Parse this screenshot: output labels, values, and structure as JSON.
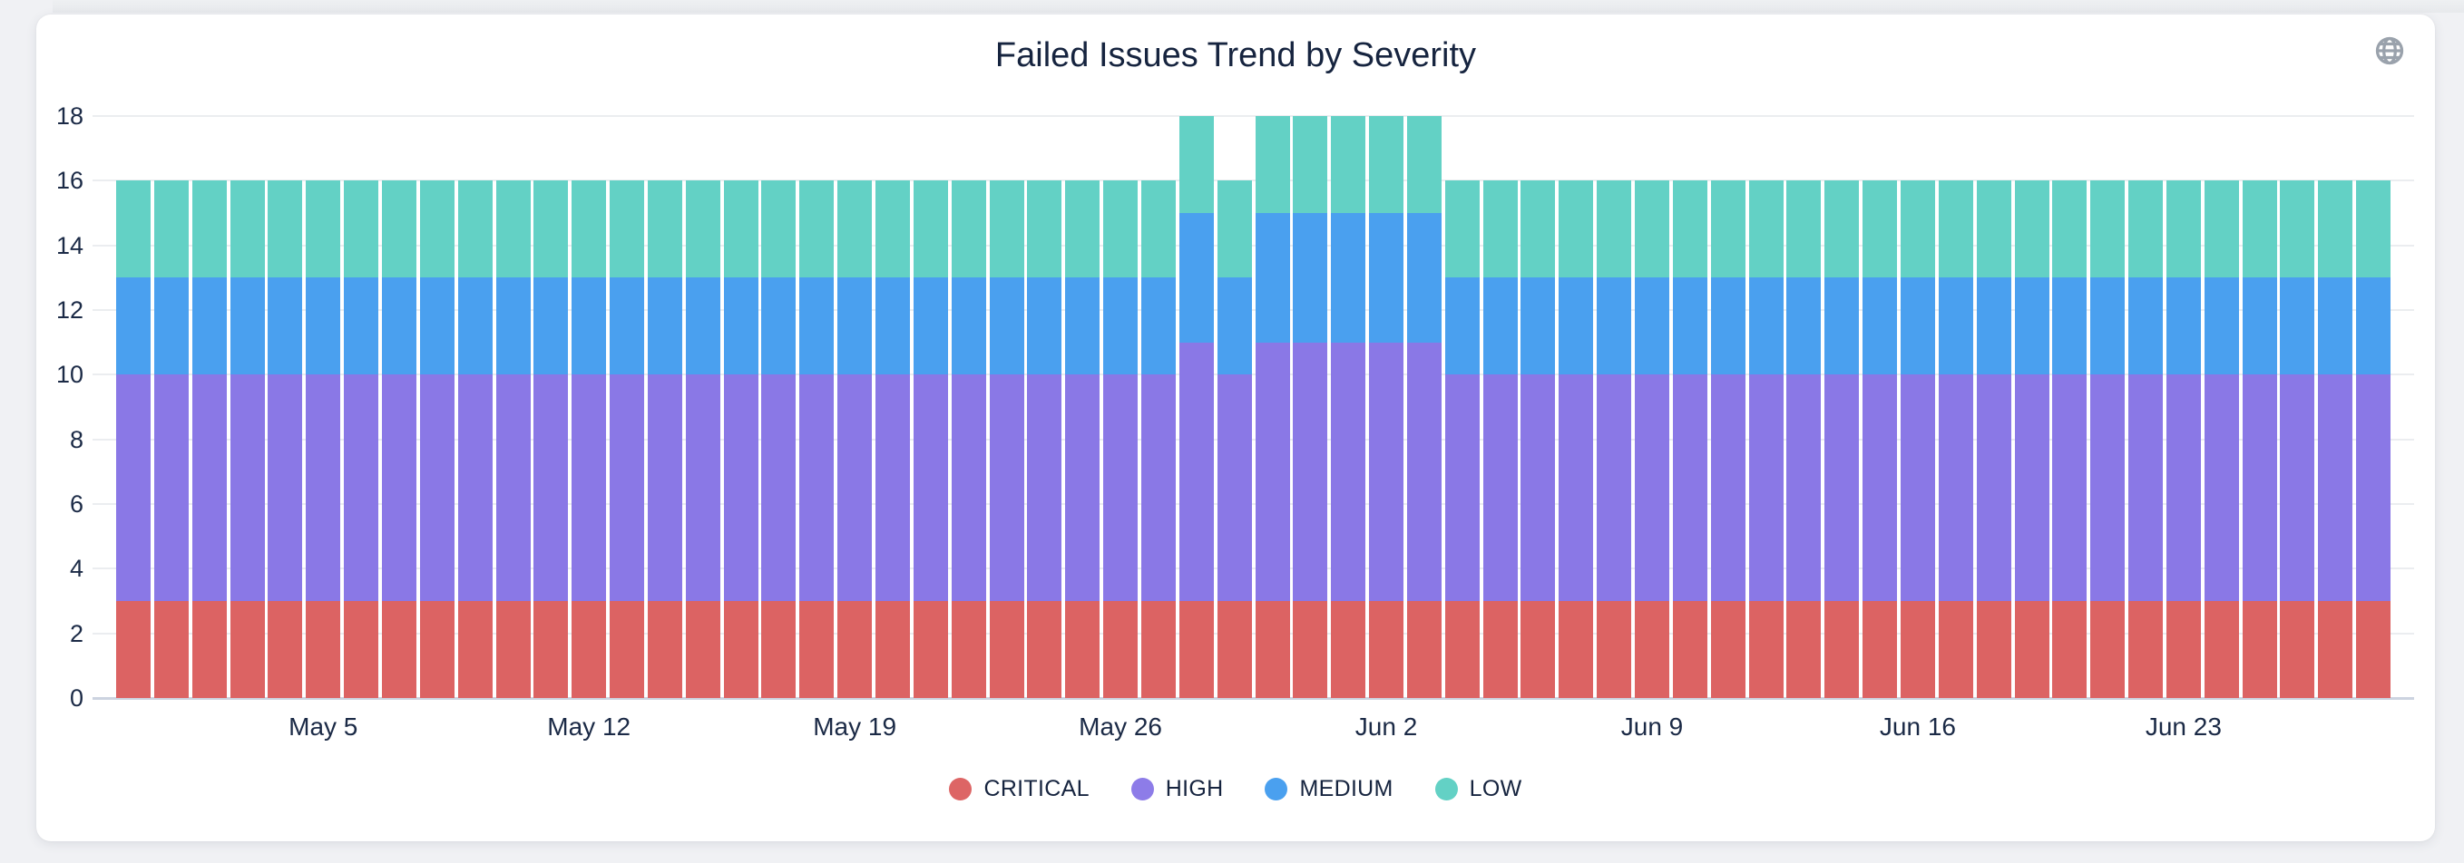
{
  "card": {
    "title": "Failed Issues Trend by Severity",
    "title_color": "#16243f",
    "icon": "globe-icon",
    "icon_color": "#9aa2ac"
  },
  "legend": {
    "items": [
      {
        "label": "CRITICAL",
        "color": "#dd6565"
      },
      {
        "label": "HIGH",
        "color": "#8d7ce8"
      },
      {
        "label": "MEDIUM",
        "color": "#4aa0ef"
      },
      {
        "label": "LOW",
        "color": "#63d1c5"
      }
    ]
  },
  "chart_data": {
    "type": "bar",
    "stacked": true,
    "title": "Failed Issues Trend by Severity",
    "xlabel": "",
    "ylabel": "",
    "ylim": [
      0,
      18
    ],
    "yticks": [
      0,
      2,
      4,
      6,
      8,
      10,
      12,
      14,
      16,
      18
    ],
    "grid": true,
    "legend_position": "bottom",
    "x": [
      "Apr 30",
      "May 1",
      "May 2",
      "May 3",
      "May 4",
      "May 5",
      "May 6",
      "May 7",
      "May 8",
      "May 9",
      "May 10",
      "May 11",
      "May 12",
      "May 13",
      "May 14",
      "May 15",
      "May 16",
      "May 17",
      "May 18",
      "May 19",
      "May 20",
      "May 21",
      "May 22",
      "May 23",
      "May 24",
      "May 25",
      "May 26",
      "May 27",
      "May 28",
      "May 29",
      "May 30",
      "May 31",
      "Jun 1",
      "Jun 2",
      "Jun 3",
      "Jun 4",
      "Jun 5",
      "Jun 6",
      "Jun 7",
      "Jun 8",
      "Jun 9",
      "Jun 10",
      "Jun 11",
      "Jun 12",
      "Jun 13",
      "Jun 14",
      "Jun 15",
      "Jun 16",
      "Jun 17",
      "Jun 18",
      "Jun 19",
      "Jun 20",
      "Jun 21",
      "Jun 22",
      "Jun 23",
      "Jun 24",
      "Jun 25",
      "Jun 26",
      "Jun 27",
      "Jun 28"
    ],
    "xticks": [
      {
        "index": 5,
        "label": "May 5"
      },
      {
        "index": 12,
        "label": "May 12"
      },
      {
        "index": 19,
        "label": "May 19"
      },
      {
        "index": 26,
        "label": "May 26"
      },
      {
        "index": 33,
        "label": "Jun 2"
      },
      {
        "index": 40,
        "label": "Jun 9"
      },
      {
        "index": 47,
        "label": "Jun 16"
      },
      {
        "index": 54,
        "label": "Jun 23"
      }
    ],
    "series": [
      {
        "name": "CRITICAL",
        "color": "#dc6363",
        "values": [
          3,
          3,
          3,
          3,
          3,
          3,
          3,
          3,
          3,
          3,
          3,
          3,
          3,
          3,
          3,
          3,
          3,
          3,
          3,
          3,
          3,
          3,
          3,
          3,
          3,
          3,
          3,
          3,
          3,
          3,
          3,
          3,
          3,
          3,
          3,
          3,
          3,
          3,
          3,
          3,
          3,
          3,
          3,
          3,
          3,
          3,
          3,
          3,
          3,
          3,
          3,
          3,
          3,
          3,
          3,
          3,
          3,
          3,
          3,
          3
        ]
      },
      {
        "name": "HIGH",
        "color": "#8a78e6",
        "values": [
          7,
          7,
          7,
          7,
          7,
          7,
          7,
          7,
          7,
          7,
          7,
          7,
          7,
          7,
          7,
          7,
          7,
          7,
          7,
          7,
          7,
          7,
          7,
          7,
          7,
          7,
          7,
          7,
          8,
          7,
          8,
          8,
          8,
          8,
          8,
          7,
          7,
          7,
          7,
          7,
          7,
          7,
          7,
          7,
          7,
          7,
          7,
          7,
          7,
          7,
          7,
          7,
          7,
          7,
          7,
          7,
          7,
          7,
          7,
          7
        ]
      },
      {
        "name": "MEDIUM",
        "color": "#4aa0ef",
        "values": [
          3,
          3,
          3,
          3,
          3,
          3,
          3,
          3,
          3,
          3,
          3,
          3,
          3,
          3,
          3,
          3,
          3,
          3,
          3,
          3,
          3,
          3,
          3,
          3,
          3,
          3,
          3,
          3,
          4,
          3,
          4,
          4,
          4,
          4,
          4,
          3,
          3,
          3,
          3,
          3,
          3,
          3,
          3,
          3,
          3,
          3,
          3,
          3,
          3,
          3,
          3,
          3,
          3,
          3,
          3,
          3,
          3,
          3,
          3,
          3
        ]
      },
      {
        "name": "LOW",
        "color": "#63d1c5",
        "values": [
          3,
          3,
          3,
          3,
          3,
          3,
          3,
          3,
          3,
          3,
          3,
          3,
          3,
          3,
          3,
          3,
          3,
          3,
          3,
          3,
          3,
          3,
          3,
          3,
          3,
          3,
          3,
          3,
          3,
          3,
          3,
          3,
          3,
          3,
          3,
          3,
          3,
          3,
          3,
          3,
          3,
          3,
          3,
          3,
          3,
          3,
          3,
          3,
          3,
          3,
          3,
          3,
          3,
          3,
          3,
          3,
          3,
          3,
          3,
          3
        ]
      }
    ]
  }
}
